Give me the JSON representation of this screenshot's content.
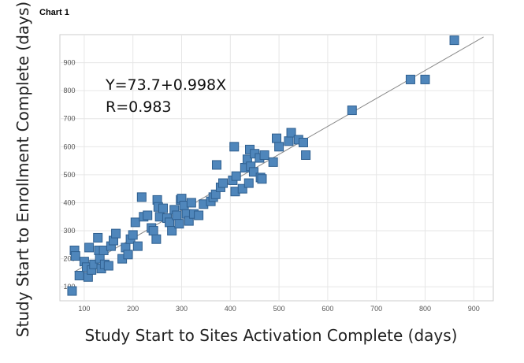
{
  "heading": "Chart 1",
  "chart_data": {
    "type": "scatter",
    "xlabel": "Study Start to Sites Activation Complete (days)",
    "ylabel": "Study Start to Enrollment Complete (days)",
    "xlim": [
      50,
      940
    ],
    "ylim": [
      50,
      1000
    ],
    "x_ticks": [
      100,
      200,
      300,
      400,
      500,
      600,
      700,
      800,
      900
    ],
    "y_ticks": [
      100,
      200,
      300,
      400,
      500,
      600,
      700,
      800,
      900
    ],
    "grid": true,
    "marker_color": "#4f86bb",
    "marker_edge_color": "#2f5f8f",
    "trendline_color": "#888888",
    "annotations": [
      "Y=73.7+0.998X",
      "R=0.983"
    ],
    "trendline": {
      "intercept": 73.7,
      "slope": 0.998,
      "x_range": [
        80,
        920
      ]
    },
    "points": [
      [
        75,
        85
      ],
      [
        80,
        230
      ],
      [
        82,
        210
      ],
      [
        90,
        140
      ],
      [
        100,
        190
      ],
      [
        105,
        170
      ],
      [
        108,
        135
      ],
      [
        110,
        240
      ],
      [
        115,
        160
      ],
      [
        120,
        180
      ],
      [
        128,
        275
      ],
      [
        130,
        230
      ],
      [
        132,
        200
      ],
      [
        135,
        165
      ],
      [
        140,
        230
      ],
      [
        142,
        180
      ],
      [
        150,
        175
      ],
      [
        155,
        245
      ],
      [
        160,
        265
      ],
      [
        165,
        290
      ],
      [
        178,
        200
      ],
      [
        185,
        240
      ],
      [
        190,
        215
      ],
      [
        195,
        270
      ],
      [
        200,
        285
      ],
      [
        205,
        330
      ],
      [
        210,
        245
      ],
      [
        218,
        420
      ],
      [
        222,
        350
      ],
      [
        230,
        355
      ],
      [
        238,
        310
      ],
      [
        242,
        300
      ],
      [
        248,
        270
      ],
      [
        250,
        410
      ],
      [
        252,
        385
      ],
      [
        255,
        350
      ],
      [
        262,
        380
      ],
      [
        270,
        345
      ],
      [
        275,
        330
      ],
      [
        280,
        300
      ],
      [
        285,
        375
      ],
      [
        290,
        355
      ],
      [
        295,
        325
      ],
      [
        298,
        410
      ],
      [
        300,
        415
      ],
      [
        305,
        390
      ],
      [
        310,
        360
      ],
      [
        315,
        335
      ],
      [
        320,
        400
      ],
      [
        325,
        360
      ],
      [
        335,
        355
      ],
      [
        345,
        395
      ],
      [
        360,
        405
      ],
      [
        365,
        420
      ],
      [
        370,
        430
      ],
      [
        372,
        535
      ],
      [
        380,
        455
      ],
      [
        385,
        470
      ],
      [
        405,
        480
      ],
      [
        408,
        600
      ],
      [
        410,
        440
      ],
      [
        412,
        495
      ],
      [
        425,
        450
      ],
      [
        430,
        525
      ],
      [
        435,
        555
      ],
      [
        438,
        470
      ],
      [
        440,
        590
      ],
      [
        442,
        530
      ],
      [
        448,
        510
      ],
      [
        450,
        575
      ],
      [
        460,
        560
      ],
      [
        462,
        490
      ],
      [
        465,
        485
      ],
      [
        470,
        570
      ],
      [
        488,
        545
      ],
      [
        495,
        630
      ],
      [
        500,
        600
      ],
      [
        520,
        620
      ],
      [
        525,
        650
      ],
      [
        540,
        625
      ],
      [
        550,
        615
      ],
      [
        555,
        570
      ],
      [
        650,
        730
      ],
      [
        770,
        840
      ],
      [
        800,
        840
      ],
      [
        860,
        980
      ]
    ]
  }
}
